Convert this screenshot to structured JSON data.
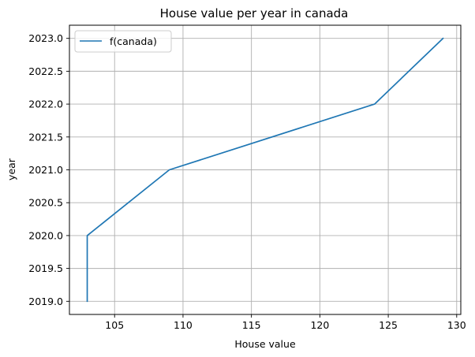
{
  "chart_data": {
    "type": "line",
    "title": "House value per year in canada",
    "xlabel": "House value",
    "ylabel": "year",
    "xlim": [
      101.7,
      130.3
    ],
    "ylim": [
      2018.8,
      2023.2
    ],
    "x_ticks": [
      105,
      110,
      115,
      120,
      125,
      130
    ],
    "x_tick_labels": [
      "105",
      "110",
      "115",
      "120",
      "125",
      "130"
    ],
    "y_ticks": [
      2019.0,
      2019.5,
      2020.0,
      2020.5,
      2021.0,
      2021.5,
      2022.0,
      2022.5,
      2023.0
    ],
    "y_tick_labels": [
      "2019.0",
      "2019.5",
      "2020.0",
      "2020.5",
      "2021.0",
      "2021.5",
      "2022.0",
      "2022.5",
      "2023.0"
    ],
    "grid": true,
    "legend_position": "upper-left",
    "series": [
      {
        "name": "f(canada)",
        "color": "#1f77b4",
        "x": [
          103,
          103,
          109,
          124,
          129
        ],
        "y": [
          2019,
          2020,
          2021,
          2022,
          2023
        ]
      }
    ]
  }
}
